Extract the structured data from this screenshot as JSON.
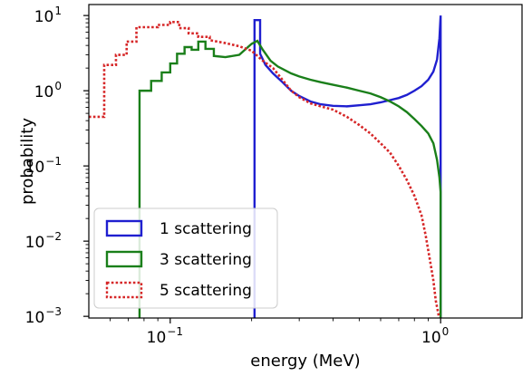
{
  "chart_data": {
    "type": "step-histogram",
    "xlabel": "energy (MeV)",
    "ylabel": "probability",
    "xscale": "log",
    "yscale": "log",
    "xlim": [
      0.05,
      2.0
    ],
    "ylim": [
      0.00095,
      14
    ],
    "x_ticks": [
      {
        "value": 0.1,
        "base": "10",
        "exp": "−1"
      },
      {
        "value": 1.0,
        "base": "10",
        "exp": "0"
      }
    ],
    "y_ticks": [
      {
        "value": 10,
        "base": "10",
        "exp": "1"
      },
      {
        "value": 1,
        "base": "10",
        "exp": "0"
      },
      {
        "value": 0.1,
        "base": "10",
        "exp": "−1"
      },
      {
        "value": 0.01,
        "base": "10",
        "exp": "−2"
      },
      {
        "value": 0.001,
        "base": "10",
        "exp": "−3"
      }
    ],
    "legend_position": "lower-left",
    "series": [
      {
        "name": "1 scattering",
        "color": "#1f1fd0",
        "dash": "solid",
        "points": [
          [
            0.205,
            0.0009
          ],
          [
            0.205,
            8.7
          ],
          [
            0.215,
            8.7
          ],
          [
            0.215,
            3.1
          ],
          [
            0.225,
            2.2
          ],
          [
            0.24,
            1.7
          ],
          [
            0.26,
            1.3
          ],
          [
            0.28,
            1.0
          ],
          [
            0.3,
            0.85
          ],
          [
            0.33,
            0.72
          ],
          [
            0.36,
            0.66
          ],
          [
            0.4,
            0.63
          ],
          [
            0.45,
            0.62
          ],
          [
            0.5,
            0.64
          ],
          [
            0.55,
            0.66
          ],
          [
            0.6,
            0.7
          ],
          [
            0.65,
            0.75
          ],
          [
            0.7,
            0.8
          ],
          [
            0.75,
            0.88
          ],
          [
            0.8,
            1.0
          ],
          [
            0.85,
            1.15
          ],
          [
            0.9,
            1.4
          ],
          [
            0.94,
            1.8
          ],
          [
            0.97,
            2.6
          ],
          [
            0.99,
            5.0
          ],
          [
            1.0,
            10.0
          ],
          [
            1.0,
            0.0009
          ]
        ]
      },
      {
        "name": "3 scattering",
        "color": "#1a7f1a",
        "dash": "solid",
        "points": [
          [
            0.077,
            0.0009
          ],
          [
            0.077,
            1.0
          ],
          [
            0.085,
            1.0
          ],
          [
            0.085,
            1.35
          ],
          [
            0.093,
            1.35
          ],
          [
            0.093,
            1.75
          ],
          [
            0.1,
            1.75
          ],
          [
            0.1,
            2.3
          ],
          [
            0.106,
            2.3
          ],
          [
            0.106,
            3.1
          ],
          [
            0.113,
            3.1
          ],
          [
            0.113,
            3.8
          ],
          [
            0.12,
            3.8
          ],
          [
            0.12,
            3.5
          ],
          [
            0.127,
            3.5
          ],
          [
            0.127,
            4.5
          ],
          [
            0.135,
            4.5
          ],
          [
            0.135,
            3.6
          ],
          [
            0.145,
            3.6
          ],
          [
            0.145,
            2.9
          ],
          [
            0.16,
            2.8
          ],
          [
            0.18,
            3.0
          ],
          [
            0.2,
            4.2
          ],
          [
            0.21,
            4.6
          ],
          [
            0.22,
            3.5
          ],
          [
            0.235,
            2.5
          ],
          [
            0.25,
            2.1
          ],
          [
            0.28,
            1.7
          ],
          [
            0.3,
            1.55
          ],
          [
            0.33,
            1.4
          ],
          [
            0.36,
            1.3
          ],
          [
            0.4,
            1.2
          ],
          [
            0.45,
            1.1
          ],
          [
            0.5,
            1.0
          ],
          [
            0.55,
            0.92
          ],
          [
            0.6,
            0.82
          ],
          [
            0.65,
            0.72
          ],
          [
            0.7,
            0.62
          ],
          [
            0.75,
            0.52
          ],
          [
            0.8,
            0.42
          ],
          [
            0.85,
            0.34
          ],
          [
            0.9,
            0.27
          ],
          [
            0.94,
            0.2
          ],
          [
            0.97,
            0.12
          ],
          [
            0.99,
            0.07
          ],
          [
            1.0,
            0.045
          ],
          [
            1.0,
            0.0009
          ]
        ]
      },
      {
        "name": "5 scattering",
        "color": "#d62728",
        "dash": "dotted",
        "points": [
          [
            0.05,
            0.45
          ],
          [
            0.057,
            0.45
          ],
          [
            0.057,
            2.2
          ],
          [
            0.063,
            2.2
          ],
          [
            0.063,
            3.0
          ],
          [
            0.069,
            3.0
          ],
          [
            0.069,
            4.5
          ],
          [
            0.075,
            4.5
          ],
          [
            0.075,
            7.0
          ],
          [
            0.09,
            7.0
          ],
          [
            0.09,
            7.5
          ],
          [
            0.1,
            7.5
          ],
          [
            0.1,
            8.2
          ],
          [
            0.108,
            8.2
          ],
          [
            0.108,
            6.8
          ],
          [
            0.117,
            6.8
          ],
          [
            0.117,
            5.8
          ],
          [
            0.127,
            5.8
          ],
          [
            0.127,
            5.2
          ],
          [
            0.14,
            5.2
          ],
          [
            0.14,
            4.7
          ],
          [
            0.16,
            4.3
          ],
          [
            0.18,
            3.9
          ],
          [
            0.2,
            3.4
          ],
          [
            0.22,
            2.5
          ],
          [
            0.24,
            2.0
          ],
          [
            0.26,
            1.4
          ],
          [
            0.28,
            1.0
          ],
          [
            0.3,
            0.82
          ],
          [
            0.33,
            0.68
          ],
          [
            0.36,
            0.62
          ],
          [
            0.4,
            0.56
          ],
          [
            0.45,
            0.45
          ],
          [
            0.5,
            0.35
          ],
          [
            0.55,
            0.27
          ],
          [
            0.6,
            0.2
          ],
          [
            0.65,
            0.15
          ],
          [
            0.7,
            0.1
          ],
          [
            0.75,
            0.065
          ],
          [
            0.8,
            0.04
          ],
          [
            0.85,
            0.022
          ],
          [
            0.88,
            0.012
          ],
          [
            0.91,
            0.006
          ],
          [
            0.94,
            0.003
          ],
          [
            0.96,
            0.0016
          ],
          [
            0.98,
            0.0011
          ],
          [
            0.99,
            0.0009
          ]
        ]
      }
    ]
  }
}
